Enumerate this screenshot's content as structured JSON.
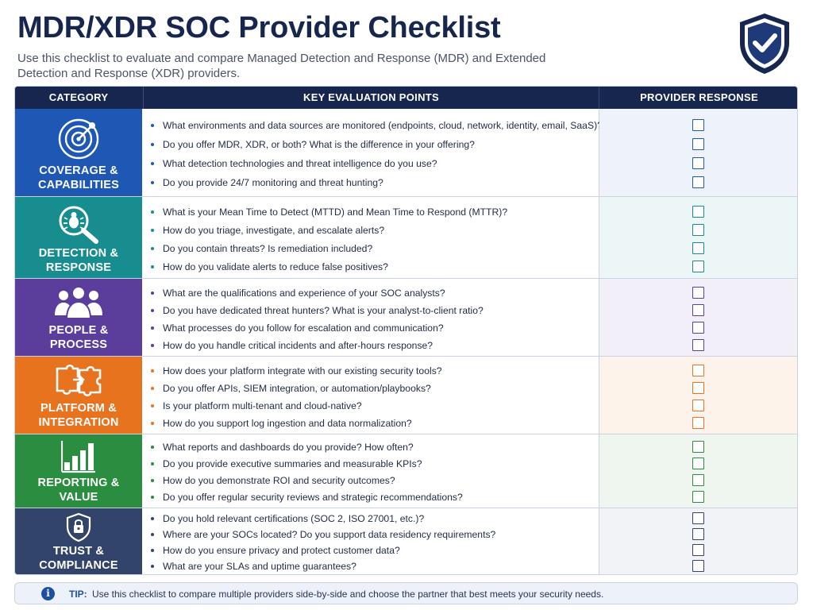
{
  "header": {
    "title": "MDR/XDR SOC Provider Checklist",
    "subtitle": "Use this checklist to evaluate and compare Managed Detection and Response (MDR) and Extended Detection and Response (XDR) providers.",
    "badge_icon": "shield-check-icon"
  },
  "table": {
    "columns": [
      "CATEGORY",
      "KEY EVALUATION POINTS",
      "PROVIDER RESPONSE"
    ],
    "sections": [
      {
        "label_line1": "COVERAGE &",
        "label_line2": "CAPABILITIES",
        "icon": "radar-target-icon",
        "color": "#1e58b4",
        "tint": "#eef3fb",
        "questions": [
          "What environments and data sources are monitored (endpoints, cloud, network, identity, email, SaaS)?",
          "Do you offer MDR, XDR, or both? What is the difference in your offering?",
          "What detection technologies and threat intelligence do you use?",
          "Do you provide 24/7 monitoring and threat hunting?"
        ]
      },
      {
        "label_line1": "DETECTION &",
        "label_line2": "RESPONSE",
        "icon": "bug-magnifier-icon",
        "color": "#178d8f",
        "tint": "#ecf6f6",
        "questions": [
          "What is your Mean Time to Detect (MTTD) and Mean Time to Respond (MTTR)?",
          "How do you triage, investigate, and escalate alerts?",
          "Do you contain threats? Is remediation included?",
          "How do you validate alerts to reduce false positives?"
        ]
      },
      {
        "label_line1": "PEOPLE &",
        "label_line2": "PROCESS",
        "icon": "people-group-icon",
        "color": "#5b3d9c",
        "tint": "#f2eff8",
        "questions": [
          "What are the qualifications and experience of your SOC analysts?",
          "Do you have dedicated threat hunters? What is your analyst-to-client ratio?",
          "What processes do you follow for escalation and communication?",
          "How do you handle critical incidents and after-hours response?"
        ]
      },
      {
        "label_line1": "PLATFORM &",
        "label_line2": "INTEGRATION",
        "icon": "puzzle-pieces-icon",
        "color": "#e8731f",
        "tint": "#fdf3ea",
        "questions": [
          "How does your platform integrate with our existing security tools?",
          "Do you offer APIs, SIEM integration, or automation/playbooks?",
          "Is your platform multi-tenant and cloud-native?",
          "How do you support log ingestion and data normalization?"
        ]
      },
      {
        "label_line1": "REPORTING &",
        "label_line2": "VALUE",
        "icon": "bar-chart-icon",
        "color": "#2a8d3f",
        "tint": "#eef6ef",
        "questions": [
          "What reports and dashboards do you provide? How often?",
          "Do you provide executive summaries and measurable KPIs?",
          "How do you demonstrate ROI and security outcomes?",
          "Do you offer regular security reviews and strategic recommendations?"
        ]
      },
      {
        "label_line1": "TRUST &",
        "label_line2": "COMPLIANCE",
        "icon": "shield-lock-icon",
        "color": "#33446b",
        "tint": "#f1f3f7",
        "questions": [
          "Do you hold relevant certifications (SOC 2, ISO 27001, etc.)?",
          "Where are your SOCs located? Do you support data residency requirements?",
          "How do you ensure privacy and protect customer data?",
          "What are your SLAs and uptime guarantees?"
        ]
      }
    ]
  },
  "tip": {
    "label": "TIP:",
    "text": "Use this checklist to compare multiple providers side-by-side and choose the partner that best meets your security needs.",
    "icon": "info-icon"
  }
}
